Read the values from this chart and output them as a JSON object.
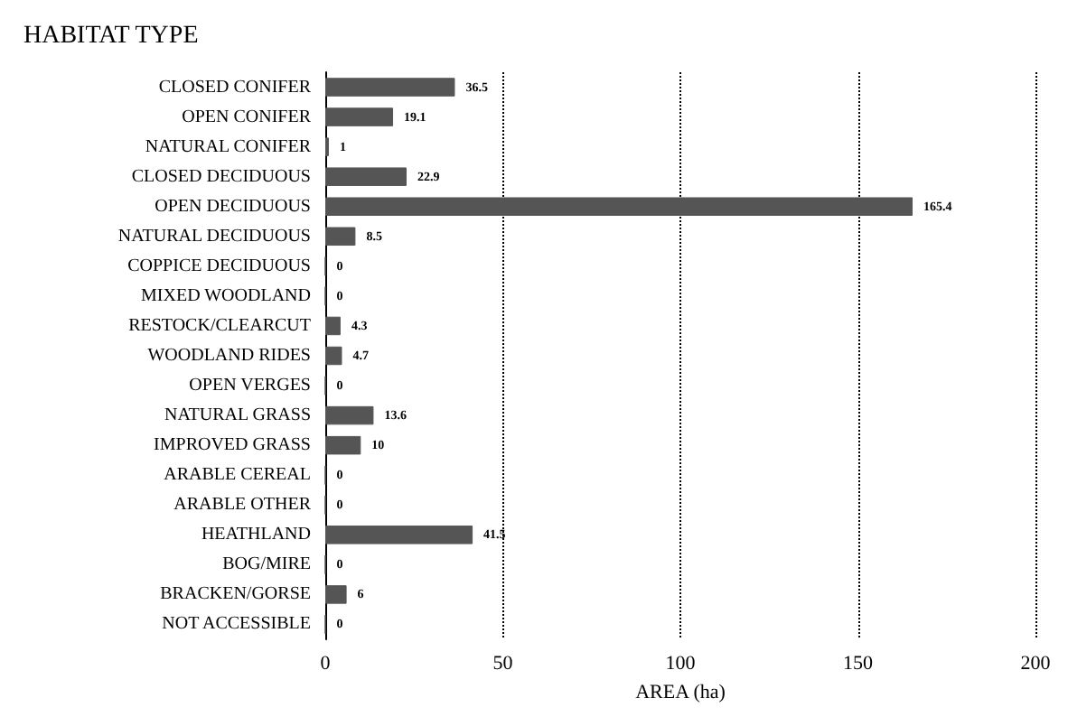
{
  "chart_data": {
    "type": "bar",
    "orientation": "horizontal",
    "title": "HABITAT TYPE",
    "xlabel": "AREA (ha)",
    "categories": [
      "CLOSED CONIFER",
      "OPEN CONIFER",
      "NATURAL CONIFER",
      "CLOSED DECIDUOUS",
      "OPEN DECIDUOUS",
      "NATURAL DECIDUOUS",
      "COPPICE DECIDUOUS",
      "MIXED WOODLAND",
      "RESTOCK/CLEARCUT",
      "WOODLAND RIDES",
      "OPEN VERGES",
      "NATURAL GRASS",
      "IMPROVED GRASS",
      "ARABLE CEREAL",
      "ARABLE OTHER",
      "HEATHLAND",
      "BOG/MIRE",
      "BRACKEN/GORSE",
      "NOT ACCESSIBLE"
    ],
    "values": [
      36.5,
      19.1,
      1,
      22.9,
      165.4,
      8.5,
      0,
      0,
      4.3,
      4.7,
      0,
      13.6,
      10,
      0,
      0,
      41.5,
      0,
      6,
      0
    ],
    "color": "#555555",
    "data_labels": true,
    "xlim": [
      0,
      200
    ],
    "xticks": [
      0,
      50,
      100,
      150,
      200
    ],
    "grid": "x"
  }
}
